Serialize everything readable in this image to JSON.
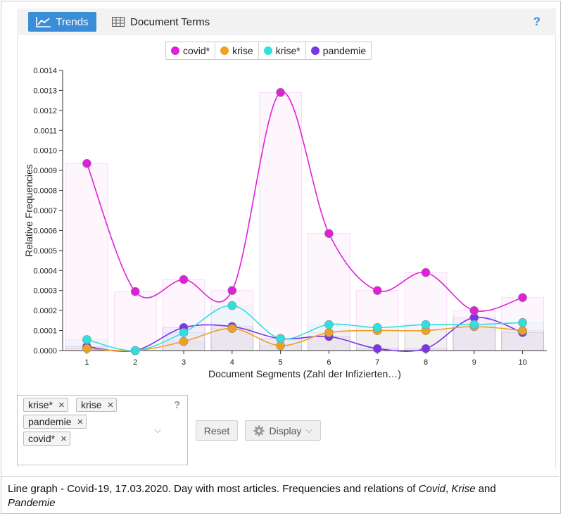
{
  "toolbar": {
    "trends_label": "Trends",
    "document_terms_label": "Document Terms",
    "help_label": "?"
  },
  "legend": {
    "items": [
      {
        "label": "covid*",
        "color": "#e020d8"
      },
      {
        "label": "krise",
        "color": "#f0a020"
      },
      {
        "label": "krise*",
        "color": "#30e0e0"
      },
      {
        "label": "pandemie",
        "color": "#7a35e8"
      }
    ]
  },
  "terms_panel": {
    "chips": [
      "krise*",
      "krise",
      "pandemie",
      "covid*"
    ],
    "help_label": "?",
    "reset_label": "Reset",
    "display_label": "Display"
  },
  "caption": {
    "prefix": "Line graph - Covid-19, 17.03.2020. Day with most articles. Frequencies and relations of ",
    "term1": "Covid",
    "sep1": ", ",
    "term2": "Krise",
    "sep2": " and",
    "term3": "Pandemie"
  },
  "chart_data": {
    "type": "line",
    "xlabel": "Document Segments (Zahl der Infizierten…)",
    "ylabel": "Relative Frequencies",
    "x": [
      1,
      2,
      3,
      4,
      5,
      6,
      7,
      8,
      9,
      10
    ],
    "ylim": [
      0,
      0.0014
    ],
    "yticks": [
      "0.0000",
      "0.0001",
      "0.0002",
      "0.0003",
      "0.0004",
      "0.0005",
      "0.0006",
      "0.0007",
      "0.0008",
      "0.0009",
      "0.0010",
      "0.0011",
      "0.0012",
      "0.0013",
      "0.0014"
    ],
    "series": [
      {
        "name": "covid*",
        "color": "#e020d8",
        "values": [
          0.000935,
          0.000295,
          0.000355,
          0.0003,
          0.00129,
          0.000585,
          0.0003,
          0.00039,
          0.0002,
          0.000265
        ]
      },
      {
        "name": "krise",
        "color": "#f0a020",
        "values": [
          1e-05,
          0.0,
          4.5e-05,
          0.00011,
          2.5e-05,
          9e-05,
          0.0001,
          0.0001,
          0.00012,
          0.0001
        ]
      },
      {
        "name": "krise*",
        "color": "#30e0e0",
        "values": [
          5.5e-05,
          0.0,
          9e-05,
          0.000225,
          6e-05,
          0.00013,
          0.000115,
          0.00013,
          0.00013,
          0.00014
        ]
      },
      {
        "name": "pandemie",
        "color": "#7a35e8",
        "values": [
          2e-05,
          0.0,
          0.000115,
          0.00012,
          6e-05,
          7e-05,
          1e-05,
          1e-05,
          0.000165,
          9e-05
        ]
      }
    ]
  }
}
